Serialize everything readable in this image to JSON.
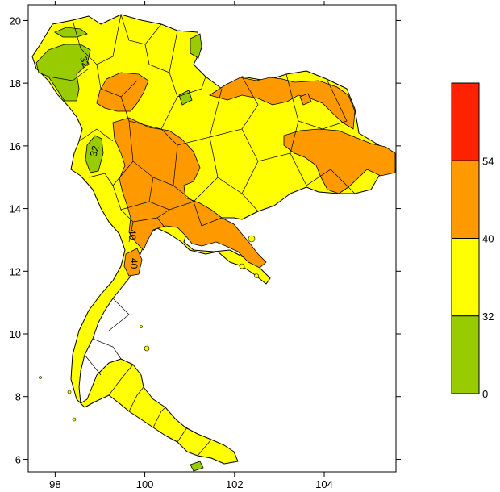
{
  "chart_data": {
    "type": "map",
    "x_axis": {
      "ticks": [
        98,
        100,
        102,
        104
      ],
      "labels": [
        "98",
        "100",
        "102",
        "104"
      ],
      "range": [
        97.4,
        105.6
      ]
    },
    "y_axis": {
      "ticks": [
        6,
        8,
        10,
        12,
        14,
        16,
        18,
        20
      ],
      "labels": [
        "6",
        "8",
        "10",
        "12",
        "14",
        "16",
        "18",
        "20"
      ],
      "range": [
        5.6,
        20.5
      ]
    },
    "contour_labels": [
      "32",
      "32",
      "40",
      "40"
    ],
    "colors": {
      "land_base": "#ffff00",
      "class_0_32": "#99cc00",
      "class_32_40": "#ffff00",
      "class_40_54": "#ff9900",
      "class_54_plus": "#ff2200",
      "outline": "#000000"
    },
    "legend": {
      "classes": [
        {
          "from": "0",
          "to": "32",
          "color": "#99cc00"
        },
        {
          "from": "32",
          "to": "40",
          "color": "#ffff00"
        },
        {
          "from": "40",
          "to": "54",
          "color": "#ff9900"
        },
        {
          "from": "54",
          "to": "",
          "color": "#ff2200"
        }
      ],
      "labels": [
        "54",
        "40",
        "32",
        "0"
      ]
    }
  }
}
